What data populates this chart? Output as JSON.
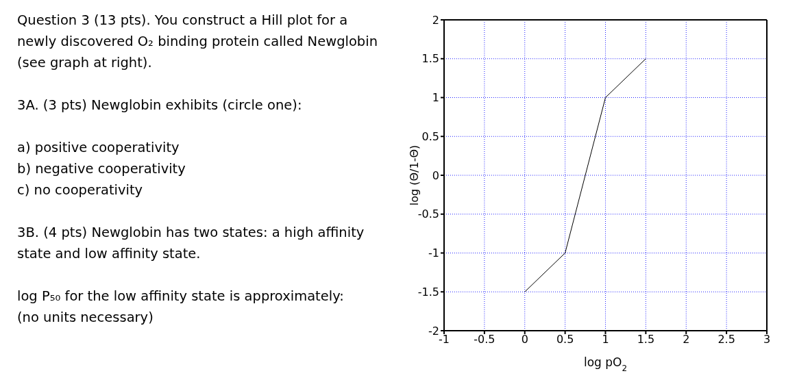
{
  "chart_data": {
    "type": "line",
    "annotations": [
      "Question 3 (13 pts). You construct a Hill plot for a newly discovered O₂ binding protein called Newglobin (see graph at right).",
      "3A. (3 pts) Newglobin exhibits (circle one):",
      "a) positive cooperativity",
      "b) negative cooperativity",
      "c) no cooperativity",
      "3B. (4 pts) Newglobin has two states: a high affinity state and low affinity state.",
      "log P₅₀ for the low affinity state is approximately:",
      "(no units necessary)"
    ],
    "xlabel": "log pO$_{2}$",
    "ylabel": "log (Θ/1-Θ)",
    "x": [
      0,
      0.5,
      1,
      1.5
    ],
    "series": [
      {
        "color": "#000000",
        "values": [
          -1.5,
          -1,
          1,
          1.5
        ]
      }
    ],
    "xlim": [
      -1,
      3
    ],
    "xticks": [
      -1,
      -0.5,
      0,
      0.5,
      1,
      1.5,
      2,
      2.5,
      3
    ],
    "ylim": [
      -2,
      2
    ],
    "yticks": [
      -2,
      -1.5,
      -1,
      -0.5,
      0,
      0.5,
      1,
      1.5,
      2
    ],
    "grid": true,
    "marker": "none",
    "line_style": "solid"
  }
}
